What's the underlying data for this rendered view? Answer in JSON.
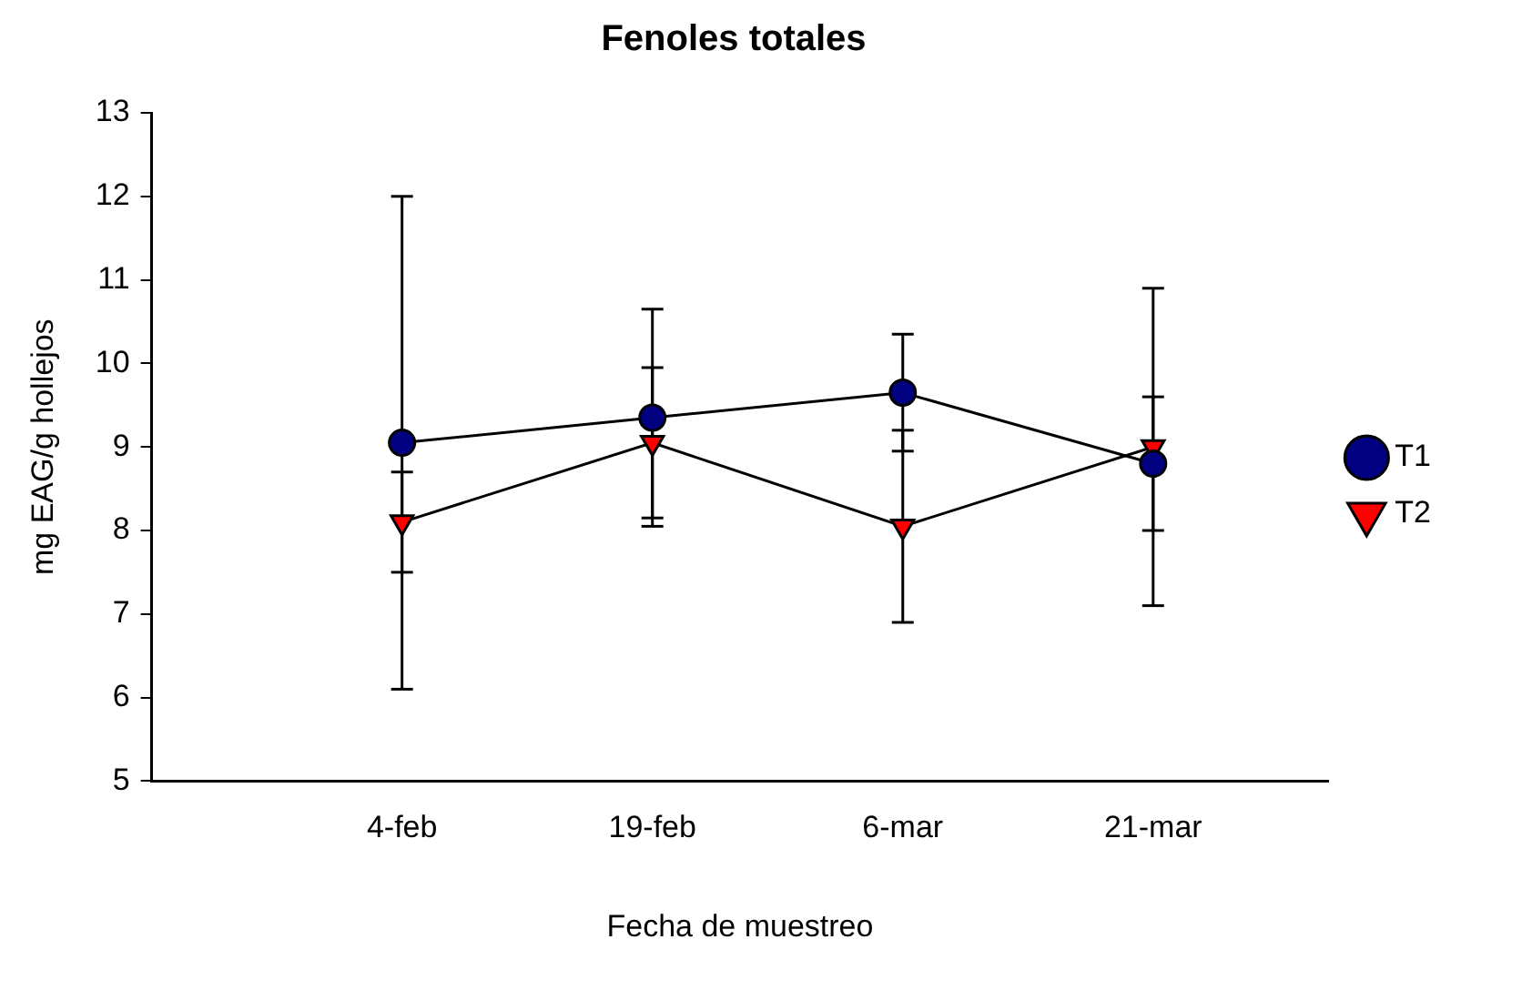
{
  "chart_data": {
    "type": "line",
    "title": "Fenoles totales",
    "xlabel": "Fecha de muestreo",
    "ylabel": "mg EAG/g hollejos",
    "categories": [
      "4-feb",
      "19-feb",
      "6-mar",
      "21-mar"
    ],
    "series": [
      {
        "name": "T1",
        "color": "#000080",
        "marker": "circle",
        "values": [
          9.05,
          9.35,
          9.65,
          8.8
        ],
        "errors": [
          2.95,
          1.3,
          0.7,
          0.8
        ]
      },
      {
        "name": "T2",
        "color": "#ff0000",
        "marker": "triangle",
        "values": [
          8.1,
          9.05,
          8.05,
          9.0
        ],
        "errors": [
          0.6,
          0.9,
          1.15,
          1.9
        ]
      }
    ],
    "ylim": [
      5,
      13
    ],
    "yticks": [
      5,
      6,
      7,
      8,
      9,
      10,
      11,
      12,
      13
    ],
    "grid": false,
    "legend": "right"
  }
}
